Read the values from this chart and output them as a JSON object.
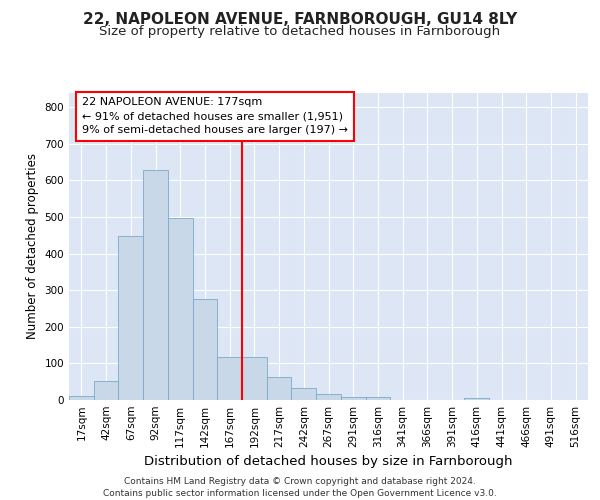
{
  "title1": "22, NAPOLEON AVENUE, FARNBOROUGH, GU14 8LY",
  "title2": "Size of property relative to detached houses in Farnborough",
  "xlabel": "Distribution of detached houses by size in Farnborough",
  "ylabel": "Number of detached properties",
  "categories": [
    "17sqm",
    "42sqm",
    "67sqm",
    "92sqm",
    "117sqm",
    "142sqm",
    "167sqm",
    "192sqm",
    "217sqm",
    "242sqm",
    "267sqm",
    "291sqm",
    "316sqm",
    "341sqm",
    "366sqm",
    "391sqm",
    "416sqm",
    "441sqm",
    "466sqm",
    "491sqm",
    "516sqm"
  ],
  "values": [
    10,
    52,
    447,
    628,
    498,
    277,
    117,
    117,
    63,
    33,
    17,
    9,
    8,
    0,
    0,
    0,
    6,
    0,
    0,
    0,
    0
  ],
  "bar_color": "#c8d8e8",
  "bar_edge_color": "#7aaac8",
  "ylim": [
    0,
    840
  ],
  "yticks": [
    0,
    100,
    200,
    300,
    400,
    500,
    600,
    700,
    800
  ],
  "background_color": "#dce6f5",
  "grid_color": "#ffffff",
  "annotation_box_text": [
    "22 NAPOLEON AVENUE: 177sqm",
    "← 91% of detached houses are smaller (1,951)",
    "9% of semi-detached houses are larger (197) →"
  ],
  "footer_text": "Contains HM Land Registry data © Crown copyright and database right 2024.\nContains public sector information licensed under the Open Government Licence v3.0.",
  "title1_fontsize": 11,
  "title2_fontsize": 9.5,
  "xlabel_fontsize": 9.5,
  "ylabel_fontsize": 8.5,
  "tick_fontsize": 7.5,
  "annotation_fontsize": 8,
  "footer_fontsize": 6.5
}
